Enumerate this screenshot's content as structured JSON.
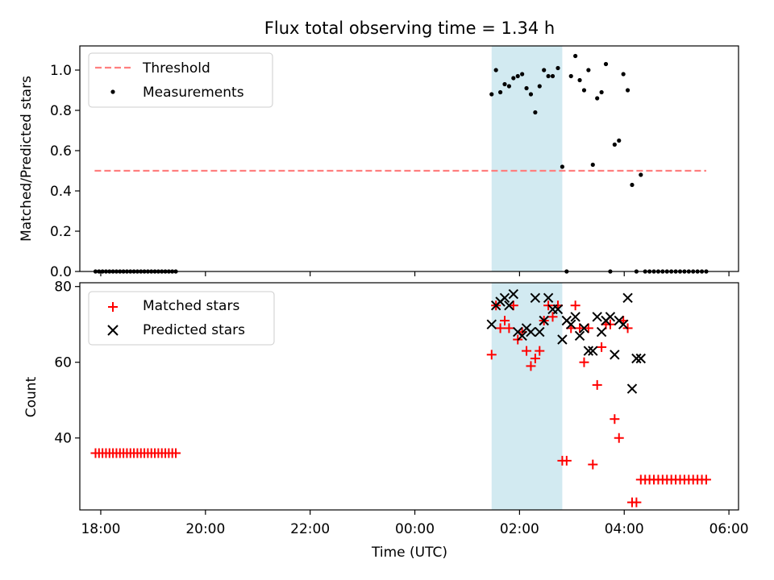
{
  "title": "Flux total observing time = 1.34 h",
  "chart_data": [
    {
      "type": "scatter",
      "ylabel": "Matched/Predicted stars",
      "xlabel": "",
      "xlim": [
        "17:36",
        "06:11"
      ],
      "ylim": [
        0,
        1.12
      ],
      "yticks": [
        0.0,
        0.2,
        0.4,
        0.6,
        0.8,
        1.0
      ],
      "ytick_labels": [
        "0.0",
        "0.2",
        "0.4",
        "0.6",
        "0.8",
        "1.0"
      ],
      "legend": "top-left",
      "grid": false,
      "shaded_span": {
        "from": "01:28",
        "to": "02:49",
        "color": "#add8e6"
      },
      "threshold": {
        "name": "Threshold",
        "value": 0.5,
        "from": "17:53",
        "to": "05:34",
        "color": "#ff7f7f",
        "style": "dashed"
      },
      "series": [
        {
          "name": "Measurements",
          "color": "#000000",
          "marker": "dot",
          "x": [
            "17:54",
            "17:58",
            "18:02",
            "18:06",
            "18:10",
            "18:14",
            "18:18",
            "18:22",
            "18:26",
            "18:30",
            "18:34",
            "18:38",
            "18:42",
            "18:46",
            "18:50",
            "18:54",
            "18:58",
            "19:02",
            "19:06",
            "19:10",
            "19:14",
            "19:18",
            "19:22",
            "19:26",
            "01:28",
            "01:33",
            "01:38",
            "01:43",
            "01:48",
            "01:53",
            "01:58",
            "02:03",
            "02:08",
            "02:13",
            "02:18",
            "02:23",
            "02:28",
            "02:33",
            "02:38",
            "02:44",
            "02:49",
            "02:54",
            "02:59",
            "03:04",
            "03:09",
            "03:14",
            "03:19",
            "03:24",
            "03:29",
            "03:34",
            "03:39",
            "03:44",
            "03:49",
            "03:54",
            "03:59",
            "04:04",
            "04:09",
            "04:14",
            "04:19",
            "04:24",
            "04:29",
            "04:34",
            "04:39",
            "04:44",
            "04:49",
            "04:54",
            "04:59",
            "05:04",
            "05:09",
            "05:14",
            "05:19",
            "05:24",
            "05:29",
            "05:34"
          ],
          "y": [
            0,
            0,
            0,
            0,
            0,
            0,
            0,
            0,
            0,
            0,
            0,
            0,
            0,
            0,
            0,
            0,
            0,
            0,
            0,
            0,
            0,
            0,
            0,
            0,
            0.88,
            1.0,
            0.89,
            0.93,
            0.92,
            0.96,
            0.97,
            0.98,
            0.91,
            0.88,
            0.79,
            0.92,
            1.0,
            0.97,
            0.97,
            1.01,
            0.52,
            0,
            0.97,
            1.07,
            0.95,
            0.9,
            1.0,
            0.53,
            0.86,
            0.89,
            1.03,
            0,
            0.63,
            0.65,
            0.98,
            0.9,
            0.43,
            0,
            0.48,
            0,
            0,
            0,
            0,
            0,
            0,
            0,
            0,
            0,
            0,
            0,
            0,
            0,
            0,
            0
          ]
        }
      ]
    },
    {
      "type": "scatter",
      "ylabel": "Count",
      "xlabel": "Time (UTC)",
      "xlim": [
        "17:36",
        "06:11"
      ],
      "ylim": [
        21,
        81
      ],
      "yticks": [
        40,
        60,
        80
      ],
      "ytick_labels": [
        "40",
        "60",
        "80"
      ],
      "xticks": [
        "18:00",
        "20:00",
        "22:00",
        "00:00",
        "02:00",
        "04:00",
        "06:00"
      ],
      "legend": "top-left",
      "grid": false,
      "shaded_span": {
        "from": "01:28",
        "to": "02:49",
        "color": "#add8e6"
      },
      "series": [
        {
          "name": "Matched stars",
          "color": "#ff0000",
          "marker": "plus",
          "x": [
            "17:54",
            "17:58",
            "18:02",
            "18:06",
            "18:10",
            "18:14",
            "18:18",
            "18:22",
            "18:26",
            "18:30",
            "18:34",
            "18:38",
            "18:42",
            "18:46",
            "18:50",
            "18:54",
            "18:58",
            "19:02",
            "19:06",
            "19:10",
            "19:14",
            "19:18",
            "19:22",
            "19:26",
            "01:28",
            "01:33",
            "01:38",
            "01:43",
            "01:48",
            "01:53",
            "01:58",
            "02:03",
            "02:08",
            "02:13",
            "02:18",
            "02:23",
            "02:28",
            "02:33",
            "02:38",
            "02:44",
            "02:49",
            "02:54",
            "02:59",
            "03:04",
            "03:09",
            "03:14",
            "03:19",
            "03:24",
            "03:29",
            "03:34",
            "03:39",
            "03:44",
            "03:49",
            "03:54",
            "03:59",
            "04:04",
            "04:09",
            "04:14",
            "04:19",
            "04:24",
            "04:29",
            "04:34",
            "04:39",
            "04:44",
            "04:49",
            "04:54",
            "04:59",
            "05:04",
            "05:09",
            "05:14",
            "05:19",
            "05:24",
            "05:29",
            "05:34"
          ],
          "y": [
            36,
            36,
            36,
            36,
            36,
            36,
            36,
            36,
            36,
            36,
            36,
            36,
            36,
            36,
            36,
            36,
            36,
            36,
            36,
            36,
            36,
            36,
            36,
            36,
            62,
            75,
            69,
            71,
            69,
            75,
            66,
            68,
            63,
            59,
            61,
            63,
            71,
            75,
            72,
            75,
            34,
            34,
            69,
            75,
            69,
            60,
            69,
            33,
            54,
            64,
            70,
            70,
            45,
            40,
            71,
            69,
            23,
            23,
            29,
            29,
            29,
            29,
            29,
            29,
            29,
            29,
            29,
            29,
            29,
            29,
            29,
            29,
            29,
            29
          ]
        },
        {
          "name": "Predicted stars",
          "color": "#000000",
          "marker": "x",
          "x": [
            "01:28",
            "01:33",
            "01:38",
            "01:43",
            "01:48",
            "01:53",
            "01:58",
            "02:03",
            "02:08",
            "02:13",
            "02:18",
            "02:23",
            "02:28",
            "02:33",
            "02:38",
            "02:44",
            "02:49",
            "02:54",
            "02:59",
            "03:04",
            "03:09",
            "03:14",
            "03:19",
            "03:24",
            "03:29",
            "03:34",
            "03:39",
            "03:44",
            "03:49",
            "03:54",
            "03:59",
            "04:04",
            "04:09",
            "04:14",
            "04:19"
          ],
          "y": [
            70,
            75,
            76,
            77,
            75,
            78,
            68,
            67,
            69,
            68,
            77,
            68,
            71,
            77,
            74,
            74,
            66,
            71,
            70,
            72,
            67,
            69,
            63,
            63,
            72,
            68,
            71,
            72,
            62,
            71,
            70,
            77,
            53,
            61,
            61
          ]
        }
      ]
    }
  ]
}
